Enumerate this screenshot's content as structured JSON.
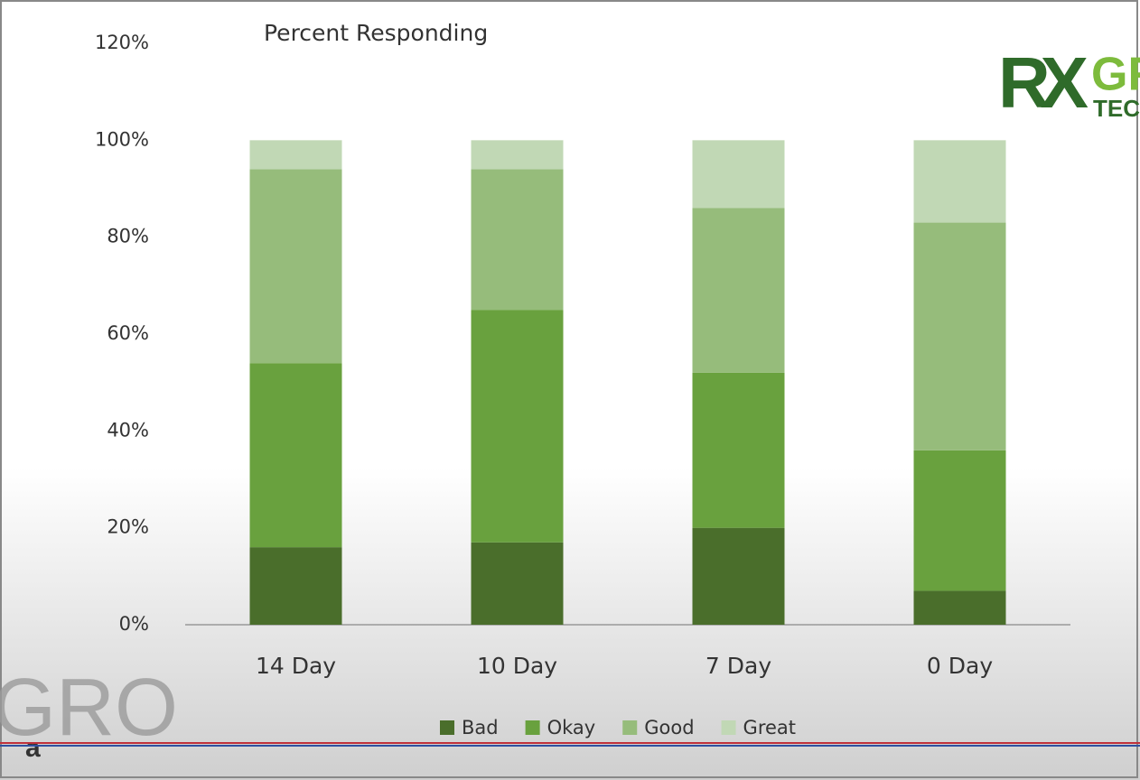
{
  "chart_data": {
    "type": "stacked_bar",
    "title": "Percent Responding",
    "categories": [
      "14 Day",
      "10 Day",
      "7 Day",
      "0 Day"
    ],
    "series": [
      {
        "name": "Bad",
        "color": "#4a6e2b",
        "values": [
          16,
          17,
          20,
          7
        ]
      },
      {
        "name": "Okay",
        "color": "#69a13e",
        "values": [
          38,
          48,
          32,
          29
        ]
      },
      {
        "name": "Good",
        "color": "#96bc7b",
        "values": [
          40,
          29,
          34,
          47
        ]
      },
      {
        "name": "Great",
        "color": "#c1d8b5",
        "values": [
          6,
          6,
          14,
          17
        ]
      }
    ],
    "ylim": [
      0,
      120
    ],
    "yticks": [
      {
        "value": 0,
        "label": "0%"
      },
      {
        "value": 20,
        "label": "20%"
      },
      {
        "value": 40,
        "label": "40%"
      },
      {
        "value": 60,
        "label": "60%"
      },
      {
        "value": 80,
        "label": "80%"
      },
      {
        "value": 100,
        "label": "100%"
      },
      {
        "value": 120,
        "label": "120%"
      }
    ],
    "grid": false,
    "legend": "bottom"
  },
  "overlay": {
    "logo_mark": "RX",
    "logo_word": "GR",
    "logo_sub": "TECH",
    "watermark": "GRO",
    "caption": "a"
  }
}
